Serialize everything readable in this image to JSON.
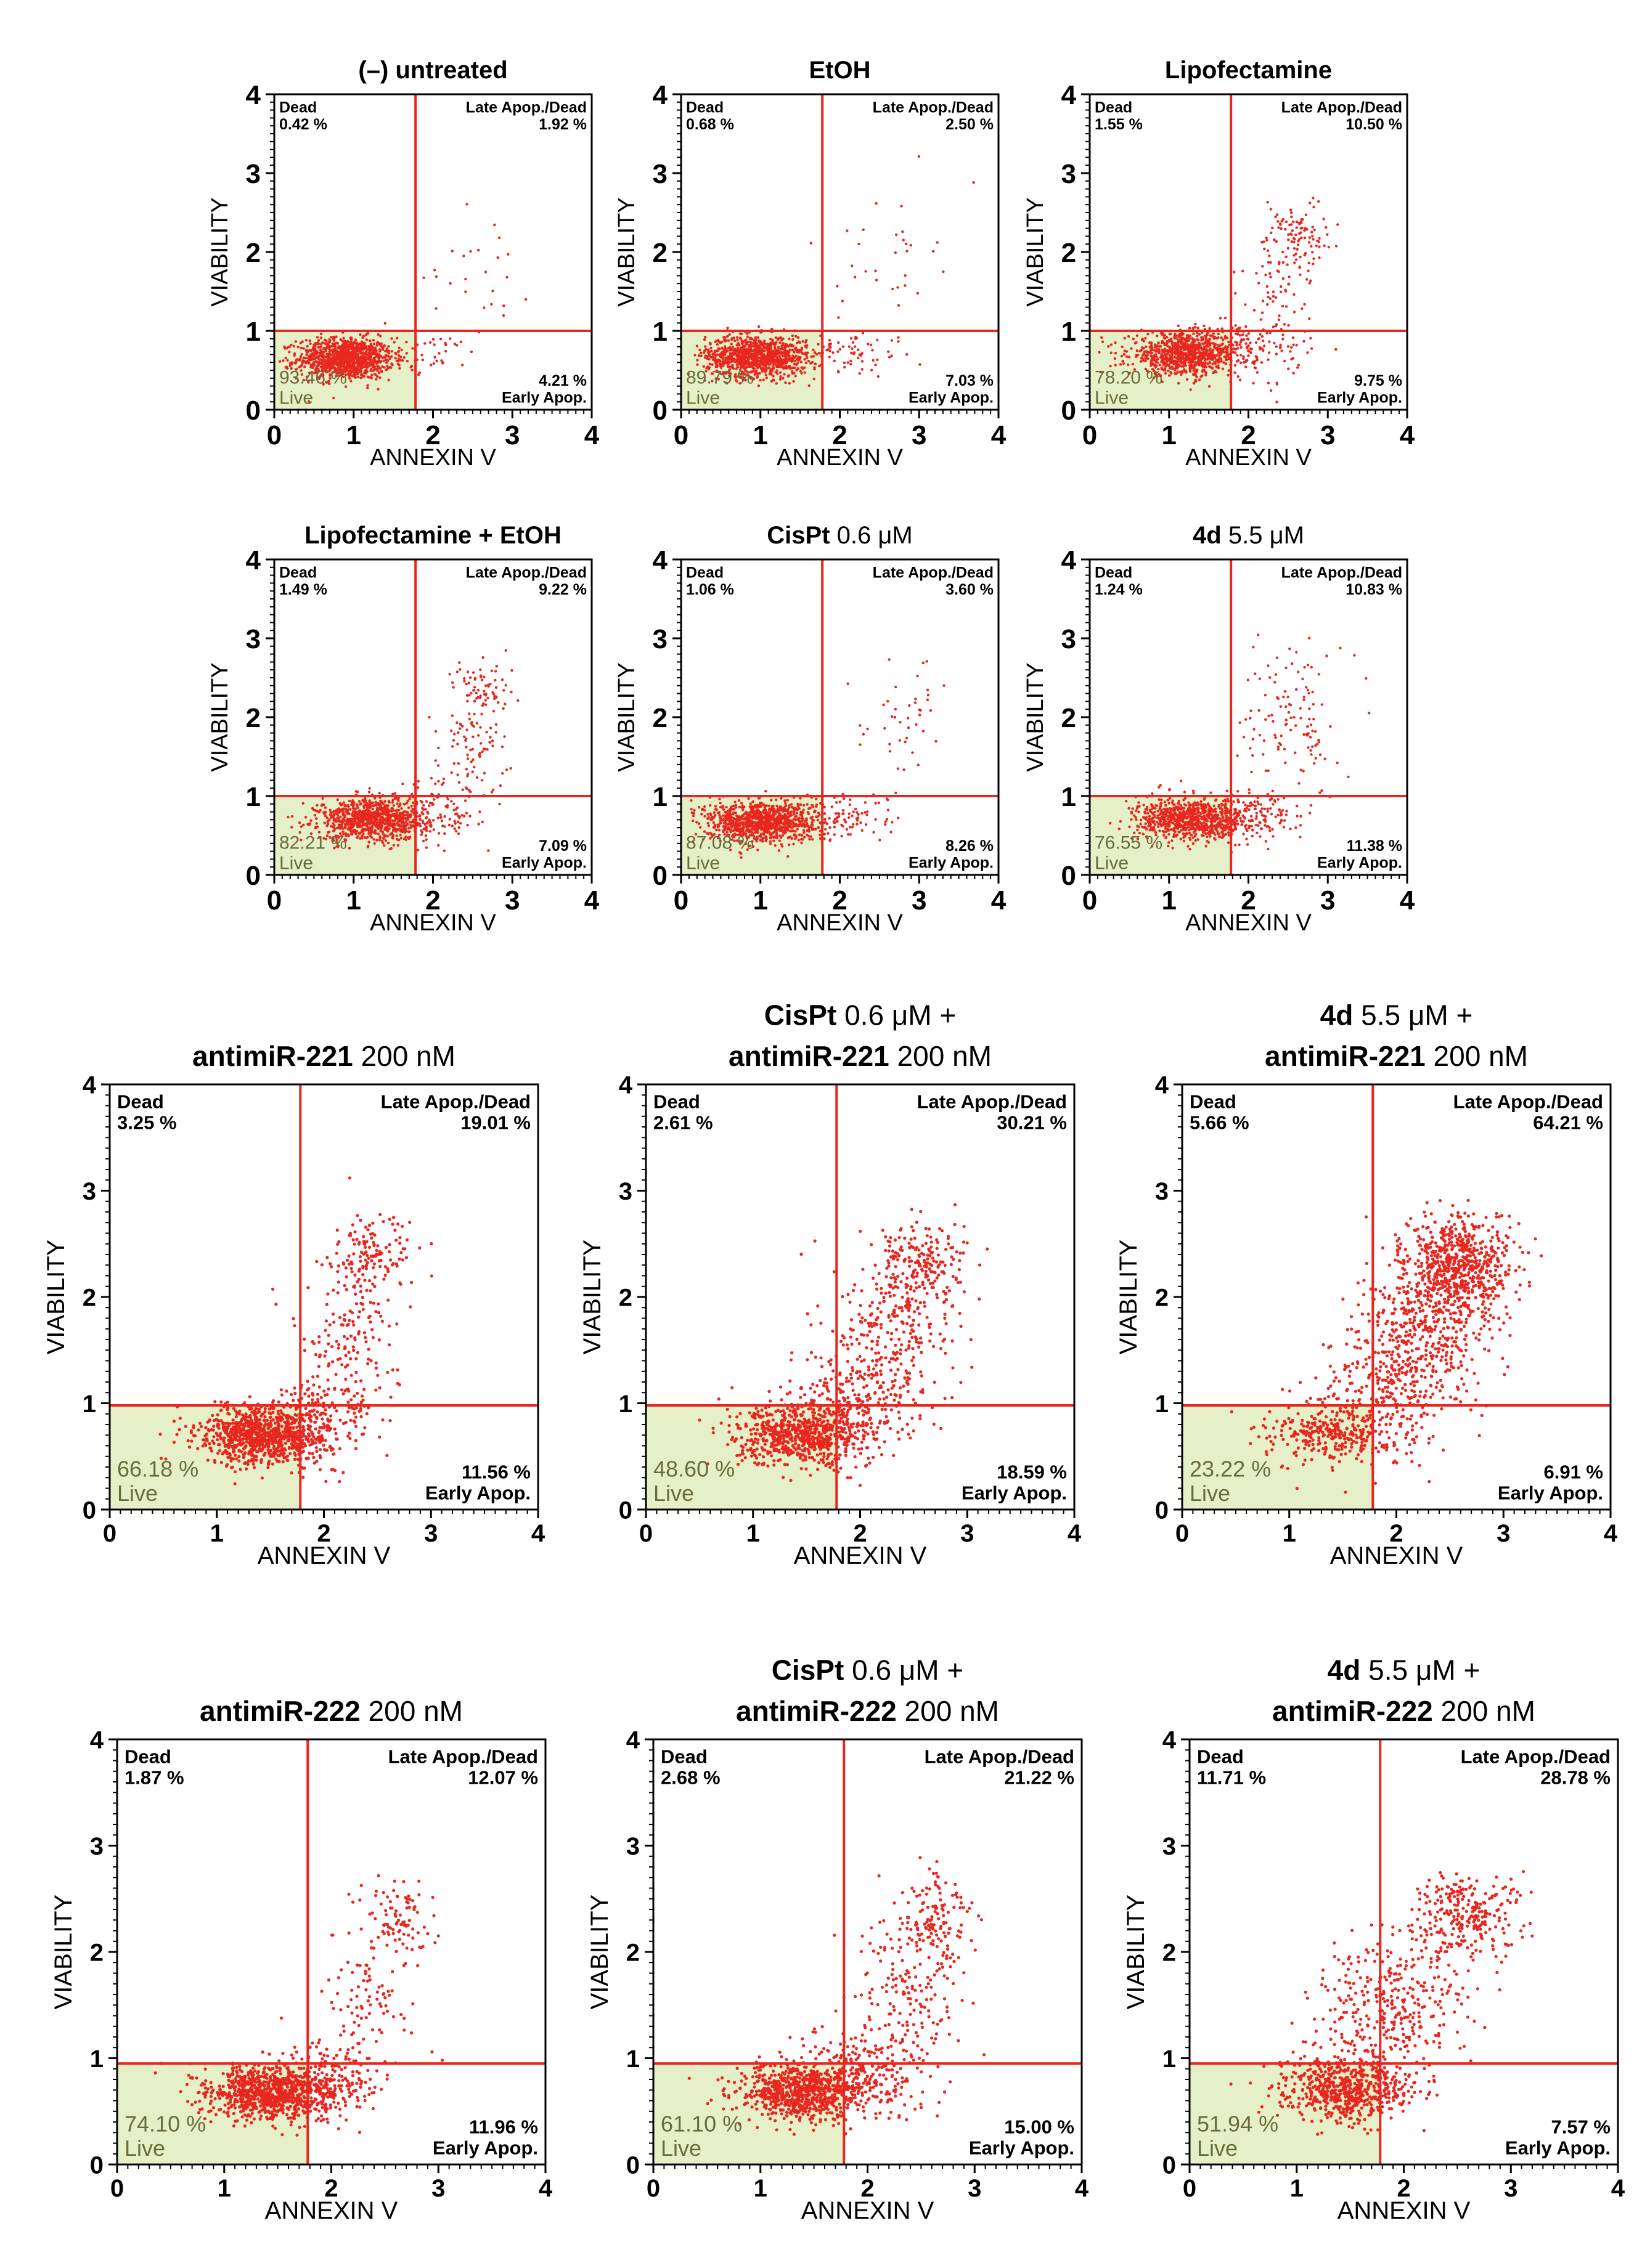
{
  "figure": {
    "description_type": "flow-cytometry-quadrant-plots"
  },
  "chart_data": [
    {
      "type": "scatter",
      "title": [
        {
          "text": "(–) untreated",
          "bold": true
        }
      ],
      "xlabel": "ANNEXIN V",
      "ylabel": "VIABILITY",
      "xlim": [
        0,
        4
      ],
      "ylim": [
        0,
        4
      ],
      "xticks": [
        "0",
        "1",
        "2",
        "3",
        "4"
      ],
      "yticks": [
        "0",
        "1",
        "2",
        "3",
        "4"
      ],
      "gates": {
        "x": 1.78,
        "y": 1.0
      },
      "quadrants": {
        "dead": {
          "label": "Dead",
          "value": "0.42 %"
        },
        "late": {
          "label": "Late Apop./Dead",
          "value": "1.92 %"
        },
        "early": {
          "label": "Early Apop.",
          "value": "4.21 %"
        },
        "live": {
          "label": "Live",
          "value": "93.46 %"
        }
      },
      "clusters": [
        {
          "n": 1100,
          "cx": 0.9,
          "cy": 0.65,
          "sx": 0.3,
          "sy": 0.13
        },
        {
          "n": 40,
          "cx": 2.0,
          "cy": 0.7,
          "sx": 0.3,
          "sy": 0.12
        },
        {
          "n": 25,
          "cx": 2.6,
          "cy": 1.9,
          "sx": 0.35,
          "sy": 0.45
        }
      ],
      "panel_size": "small"
    },
    {
      "type": "scatter",
      "title": [
        {
          "text": "EtOH",
          "bold": true
        }
      ],
      "xlabel": "ANNEXIN V",
      "ylabel": "VIABILITY",
      "xlim": [
        0,
        4
      ],
      "ylim": [
        0,
        4
      ],
      "xticks": [
        "0",
        "1",
        "2",
        "3",
        "4"
      ],
      "yticks": [
        "0",
        "1",
        "2",
        "3",
        "4"
      ],
      "gates": {
        "x": 1.78,
        "y": 1.0
      },
      "quadrants": {
        "dead": {
          "label": "Dead",
          "value": "0.68 %"
        },
        "late": {
          "label": "Late Apop./Dead",
          "value": "2.50 %"
        },
        "early": {
          "label": "Early Apop.",
          "value": "7.03 %"
        },
        "live": {
          "label": "Live",
          "value": "89.79 %"
        }
      },
      "clusters": [
        {
          "n": 1050,
          "cx": 0.95,
          "cy": 0.68,
          "sx": 0.32,
          "sy": 0.13
        },
        {
          "n": 70,
          "cx": 2.1,
          "cy": 0.7,
          "sx": 0.35,
          "sy": 0.15
        },
        {
          "n": 35,
          "cx": 2.6,
          "cy": 1.9,
          "sx": 0.3,
          "sy": 0.45
        }
      ],
      "panel_size": "small"
    },
    {
      "type": "scatter",
      "title": [
        {
          "text": "Lipofectamine",
          "bold": true
        }
      ],
      "xlabel": "ANNEXIN V",
      "ylabel": "VIABILITY",
      "xlim": [
        0,
        4
      ],
      "ylim": [
        0,
        4
      ],
      "xticks": [
        "0",
        "1",
        "2",
        "3",
        "4"
      ],
      "yticks": [
        "0",
        "1",
        "2",
        "3",
        "4"
      ],
      "gates": {
        "x": 1.78,
        "y": 1.0
      },
      "quadrants": {
        "dead": {
          "label": "Dead",
          "value": "1.55 %"
        },
        "late": {
          "label": "Late Apop./Dead",
          "value": "10.50 %"
        },
        "early": {
          "label": "Early Apop.",
          "value": "9.75 %"
        },
        "live": {
          "label": "Live",
          "value": "78.20 %"
        }
      },
      "clusters": [
        {
          "n": 900,
          "cx": 1.2,
          "cy": 0.7,
          "sx": 0.35,
          "sy": 0.13
        },
        {
          "n": 110,
          "cx": 2.05,
          "cy": 0.8,
          "sx": 0.3,
          "sy": 0.2
        },
        {
          "n": 90,
          "cx": 2.45,
          "cy": 1.6,
          "sx": 0.25,
          "sy": 0.4
        },
        {
          "n": 80,
          "cx": 2.6,
          "cy": 2.3,
          "sx": 0.2,
          "sy": 0.2
        }
      ],
      "panel_size": "small"
    },
    {
      "type": "scatter",
      "title": [
        {
          "text": "Lipofectamine + EtOH",
          "bold": true
        }
      ],
      "xlabel": "ANNEXIN V",
      "ylabel": "VIABILITY",
      "xlim": [
        0,
        4
      ],
      "ylim": [
        0,
        4
      ],
      "xticks": [
        "0",
        "1",
        "2",
        "3",
        "4"
      ],
      "yticks": [
        "0",
        "1",
        "2",
        "3",
        "4"
      ],
      "gates": {
        "x": 1.78,
        "y": 1.0
      },
      "quadrants": {
        "dead": {
          "label": "Dead",
          "value": "1.49 %"
        },
        "late": {
          "label": "Late Apop./Dead",
          "value": "9.22 %"
        },
        "early": {
          "label": "Early Apop.",
          "value": "7.09 %"
        },
        "live": {
          "label": "Live",
          "value": "82.21 %"
        }
      },
      "clusters": [
        {
          "n": 950,
          "cx": 1.25,
          "cy": 0.7,
          "sx": 0.35,
          "sy": 0.13
        },
        {
          "n": 90,
          "cx": 2.1,
          "cy": 0.85,
          "sx": 0.3,
          "sy": 0.2
        },
        {
          "n": 80,
          "cx": 2.45,
          "cy": 1.6,
          "sx": 0.25,
          "sy": 0.35
        },
        {
          "n": 70,
          "cx": 2.65,
          "cy": 2.35,
          "sx": 0.2,
          "sy": 0.18
        }
      ],
      "panel_size": "small"
    },
    {
      "type": "scatter",
      "title": [
        {
          "text": "CisPt",
          "bold": true
        },
        {
          "text": " 0.6 μM",
          "bold": false
        }
      ],
      "xlabel": "ANNEXIN V",
      "ylabel": "VIABILITY",
      "xlim": [
        0,
        4
      ],
      "ylim": [
        0,
        4
      ],
      "xticks": [
        "0",
        "1",
        "2",
        "3",
        "4"
      ],
      "yticks": [
        "0",
        "1",
        "2",
        "3",
        "4"
      ],
      "gates": {
        "x": 1.78,
        "y": 1.0
      },
      "quadrants": {
        "dead": {
          "label": "Dead",
          "value": "1.06 %"
        },
        "late": {
          "label": "Late Apop./Dead",
          "value": "3.60 %"
        },
        "early": {
          "label": "Early Apop.",
          "value": "8.26 %"
        },
        "live": {
          "label": "Live",
          "value": "87.08 %"
        }
      },
      "clusters": [
        {
          "n": 1000,
          "cx": 1.0,
          "cy": 0.68,
          "sx": 0.35,
          "sy": 0.13
        },
        {
          "n": 90,
          "cx": 2.1,
          "cy": 0.72,
          "sx": 0.35,
          "sy": 0.15
        },
        {
          "n": 45,
          "cx": 2.7,
          "cy": 1.9,
          "sx": 0.3,
          "sy": 0.45
        }
      ],
      "panel_size": "small"
    },
    {
      "type": "scatter",
      "title": [
        {
          "text": "4d",
          "bold": true
        },
        {
          "text": " 5.5 μM",
          "bold": false
        }
      ],
      "xlabel": "ANNEXIN V",
      "ylabel": "VIABILITY",
      "xlim": [
        0,
        4
      ],
      "ylim": [
        0,
        4
      ],
      "xticks": [
        "0",
        "1",
        "2",
        "3",
        "4"
      ],
      "yticks": [
        "0",
        "1",
        "2",
        "3",
        "4"
      ],
      "gates": {
        "x": 1.78,
        "y": 1.0
      },
      "quadrants": {
        "dead": {
          "label": "Dead",
          "value": "1.24 %"
        },
        "late": {
          "label": "Late Apop./Dead",
          "value": "10.83 %"
        },
        "early": {
          "label": "Early Apop.",
          "value": "11.38 %"
        },
        "live": {
          "label": "Live",
          "value": "76.55 %"
        }
      },
      "clusters": [
        {
          "n": 850,
          "cx": 1.3,
          "cy": 0.7,
          "sx": 0.35,
          "sy": 0.13
        },
        {
          "n": 130,
          "cx": 2.05,
          "cy": 0.75,
          "sx": 0.3,
          "sy": 0.15
        },
        {
          "n": 120,
          "cx": 2.55,
          "cy": 2.0,
          "sx": 0.3,
          "sy": 0.45
        }
      ],
      "panel_size": "small"
    },
    {
      "type": "scatter",
      "title": [
        {
          "text": "antimiR-221",
          "bold": true
        },
        {
          "text": " 200 nM",
          "bold": false
        }
      ],
      "xlabel": "ANNEXIN V",
      "ylabel": "VIABILITY",
      "xlim": [
        0,
        4
      ],
      "ylim": [
        0,
        4
      ],
      "xticks": [
        "0",
        "1",
        "2",
        "3",
        "4"
      ],
      "yticks": [
        "0",
        "1",
        "2",
        "3",
        "4"
      ],
      "gates": {
        "x": 1.78,
        "y": 0.98
      },
      "quadrants": {
        "dead": {
          "label": "Dead",
          "value": "3.25 %"
        },
        "late": {
          "label": "Late Apop./Dead",
          "value": "19.01 %"
        },
        "early": {
          "label": "Early Apop.",
          "value": "11.56 %"
        },
        "live": {
          "label": "Live",
          "value": "66.18 %"
        }
      },
      "clusters": [
        {
          "n": 900,
          "cx": 1.45,
          "cy": 0.7,
          "sx": 0.3,
          "sy": 0.14
        },
        {
          "n": 150,
          "cx": 1.95,
          "cy": 0.85,
          "sx": 0.25,
          "sy": 0.2
        },
        {
          "n": 150,
          "cx": 2.2,
          "cy": 1.6,
          "sx": 0.25,
          "sy": 0.35
        },
        {
          "n": 140,
          "cx": 2.45,
          "cy": 2.35,
          "sx": 0.18,
          "sy": 0.2
        }
      ],
      "panel_size": "large"
    },
    {
      "type": "scatter",
      "title": [
        {
          "text": "CisPt",
          "bold": true
        },
        {
          "text": " 0.6 μM +",
          "bold": false
        },
        {
          "text": "|"
        },
        {
          "text": "antimiR-221",
          "bold": true
        },
        {
          "text": " 200 nM",
          "bold": false
        }
      ],
      "xlabel": "ANNEXIN V",
      "ylabel": "VIABILITY",
      "xlim": [
        0,
        4
      ],
      "ylim": [
        0,
        4
      ],
      "xticks": [
        "0",
        "1",
        "2",
        "3",
        "4"
      ],
      "yticks": [
        "0",
        "1",
        "2",
        "3",
        "4"
      ],
      "gates": {
        "x": 1.78,
        "y": 0.98
      },
      "quadrants": {
        "dead": {
          "label": "Dead",
          "value": "2.61 %"
        },
        "late": {
          "label": "Late Apop./Dead",
          "value": "30.21 %"
        },
        "early": {
          "label": "Early Apop.",
          "value": "18.59 %"
        },
        "live": {
          "label": "Live",
          "value": "48.60 %"
        }
      },
      "clusters": [
        {
          "n": 700,
          "cx": 1.45,
          "cy": 0.7,
          "sx": 0.3,
          "sy": 0.14
        },
        {
          "n": 250,
          "cx": 2.0,
          "cy": 1.0,
          "sx": 0.3,
          "sy": 0.25
        },
        {
          "n": 230,
          "cx": 2.3,
          "cy": 1.7,
          "sx": 0.3,
          "sy": 0.35
        },
        {
          "n": 200,
          "cx": 2.6,
          "cy": 2.3,
          "sx": 0.2,
          "sy": 0.22
        }
      ],
      "panel_size": "large"
    },
    {
      "type": "scatter",
      "title": [
        {
          "text": "4d",
          "bold": true
        },
        {
          "text": " 5.5 μM +",
          "bold": false
        },
        {
          "text": "|"
        },
        {
          "text": "antimiR-221",
          "bold": true
        },
        {
          "text": " 200 nM",
          "bold": false
        }
      ],
      "xlabel": "ANNEXIN V",
      "ylabel": "VIABILITY",
      "xlim": [
        0,
        4
      ],
      "ylim": [
        0,
        4
      ],
      "xticks": [
        "0",
        "1",
        "2",
        "3",
        "4"
      ],
      "yticks": [
        "0",
        "1",
        "2",
        "3",
        "4"
      ],
      "gates": {
        "x": 1.78,
        "y": 0.98
      },
      "quadrants": {
        "dead": {
          "label": "Dead",
          "value": "5.66 %"
        },
        "late": {
          "label": "Late Apop./Dead",
          "value": "64.21 %"
        },
        "early": {
          "label": "Early Apop.",
          "value": "6.91 %"
        },
        "live": {
          "label": "Live",
          "value": "23.22 %"
        }
      },
      "clusters": [
        {
          "n": 300,
          "cx": 1.4,
          "cy": 0.72,
          "sx": 0.3,
          "sy": 0.14
        },
        {
          "n": 250,
          "cx": 1.9,
          "cy": 1.1,
          "sx": 0.3,
          "sy": 0.3
        },
        {
          "n": 450,
          "cx": 2.3,
          "cy": 1.75,
          "sx": 0.3,
          "sy": 0.35
        },
        {
          "n": 600,
          "cx": 2.6,
          "cy": 2.3,
          "sx": 0.25,
          "sy": 0.22
        }
      ],
      "panel_size": "large"
    },
    {
      "type": "scatter",
      "title": [
        {
          "text": "antimiR-222",
          "bold": true
        },
        {
          "text": " 200 nM",
          "bold": false
        }
      ],
      "xlabel": "ANNEXIN V",
      "ylabel": "VIABILITY",
      "xlim": [
        0,
        4
      ],
      "ylim": [
        0,
        4
      ],
      "xticks": [
        "0",
        "1",
        "2",
        "3",
        "4"
      ],
      "yticks": [
        "0",
        "1",
        "2",
        "3",
        "4"
      ],
      "gates": {
        "x": 1.78,
        "y": 0.95
      },
      "quadrants": {
        "dead": {
          "label": "Dead",
          "value": "1.87 %"
        },
        "late": {
          "label": "Late Apop./Dead",
          "value": "12.07 %"
        },
        "early": {
          "label": "Early Apop.",
          "value": "11.96 %"
        },
        "live": {
          "label": "Live",
          "value": "74.10 %"
        }
      },
      "clusters": [
        {
          "n": 950,
          "cx": 1.45,
          "cy": 0.68,
          "sx": 0.3,
          "sy": 0.13
        },
        {
          "n": 140,
          "cx": 2.0,
          "cy": 0.8,
          "sx": 0.25,
          "sy": 0.18
        },
        {
          "n": 90,
          "cx": 2.35,
          "cy": 1.5,
          "sx": 0.22,
          "sy": 0.35
        },
        {
          "n": 90,
          "cx": 2.6,
          "cy": 2.3,
          "sx": 0.18,
          "sy": 0.2
        }
      ],
      "panel_size": "large"
    },
    {
      "type": "scatter",
      "title": [
        {
          "text": "CisPt",
          "bold": true
        },
        {
          "text": " 0.6 μM +",
          "bold": false
        },
        {
          "text": "|"
        },
        {
          "text": "antimiR-222",
          "bold": true
        },
        {
          "text": " 200 nM",
          "bold": false
        }
      ],
      "xlabel": "ANNEXIN V",
      "ylabel": "VIABILITY",
      "xlim": [
        0,
        4
      ],
      "ylim": [
        0,
        4
      ],
      "xticks": [
        "0",
        "1",
        "2",
        "3",
        "4"
      ],
      "yticks": [
        "0",
        "1",
        "2",
        "3",
        "4"
      ],
      "gates": {
        "x": 1.78,
        "y": 0.95
      },
      "quadrants": {
        "dead": {
          "label": "Dead",
          "value": "2.68 %"
        },
        "late": {
          "label": "Late Apop./Dead",
          "value": "21.22 %"
        },
        "early": {
          "label": "Early Apop.",
          "value": "15.00 %"
        },
        "live": {
          "label": "Live",
          "value": "61.10 %"
        }
      },
      "clusters": [
        {
          "n": 800,
          "cx": 1.4,
          "cy": 0.68,
          "sx": 0.3,
          "sy": 0.13
        },
        {
          "n": 220,
          "cx": 2.0,
          "cy": 0.85,
          "sx": 0.3,
          "sy": 0.2
        },
        {
          "n": 160,
          "cx": 2.4,
          "cy": 1.6,
          "sx": 0.25,
          "sy": 0.4
        },
        {
          "n": 130,
          "cx": 2.65,
          "cy": 2.35,
          "sx": 0.18,
          "sy": 0.22
        }
      ],
      "panel_size": "large"
    },
    {
      "type": "scatter",
      "title": [
        {
          "text": "4d",
          "bold": true
        },
        {
          "text": " 5.5 μM +",
          "bold": false
        },
        {
          "text": "|"
        },
        {
          "text": "antimiR-222",
          "bold": true
        },
        {
          "text": " 200 nM",
          "bold": false
        }
      ],
      "xlabel": "ANNEXIN V",
      "ylabel": "VIABILITY",
      "xlim": [
        0,
        4
      ],
      "ylim": [
        0,
        4
      ],
      "xticks": [
        "0",
        "1",
        "2",
        "3",
        "4"
      ],
      "yticks": [
        "0",
        "1",
        "2",
        "3",
        "4"
      ],
      "gates": {
        "x": 1.78,
        "y": 0.95
      },
      "quadrants": {
        "dead": {
          "label": "Dead",
          "value": "11.71 %"
        },
        "late": {
          "label": "Late Apop./Dead",
          "value": "28.78 %"
        },
        "early": {
          "label": "Early Apop.",
          "value": "7.57 %"
        },
        "live": {
          "label": "Live",
          "value": "51.94 %"
        }
      },
      "clusters": [
        {
          "n": 600,
          "cx": 1.45,
          "cy": 0.7,
          "sx": 0.3,
          "sy": 0.14
        },
        {
          "n": 200,
          "cx": 1.65,
          "cy": 1.3,
          "sx": 0.3,
          "sy": 0.35
        },
        {
          "n": 200,
          "cx": 2.1,
          "cy": 1.7,
          "sx": 0.3,
          "sy": 0.35
        },
        {
          "n": 250,
          "cx": 2.6,
          "cy": 2.35,
          "sx": 0.25,
          "sy": 0.2
        }
      ],
      "panel_size": "large"
    }
  ],
  "colors": {
    "dots": "#e8271f",
    "gate": "#e8271f",
    "live_fill": "#e6f0c8",
    "frame": "#000000",
    "live_text": "#6b6b3a"
  }
}
